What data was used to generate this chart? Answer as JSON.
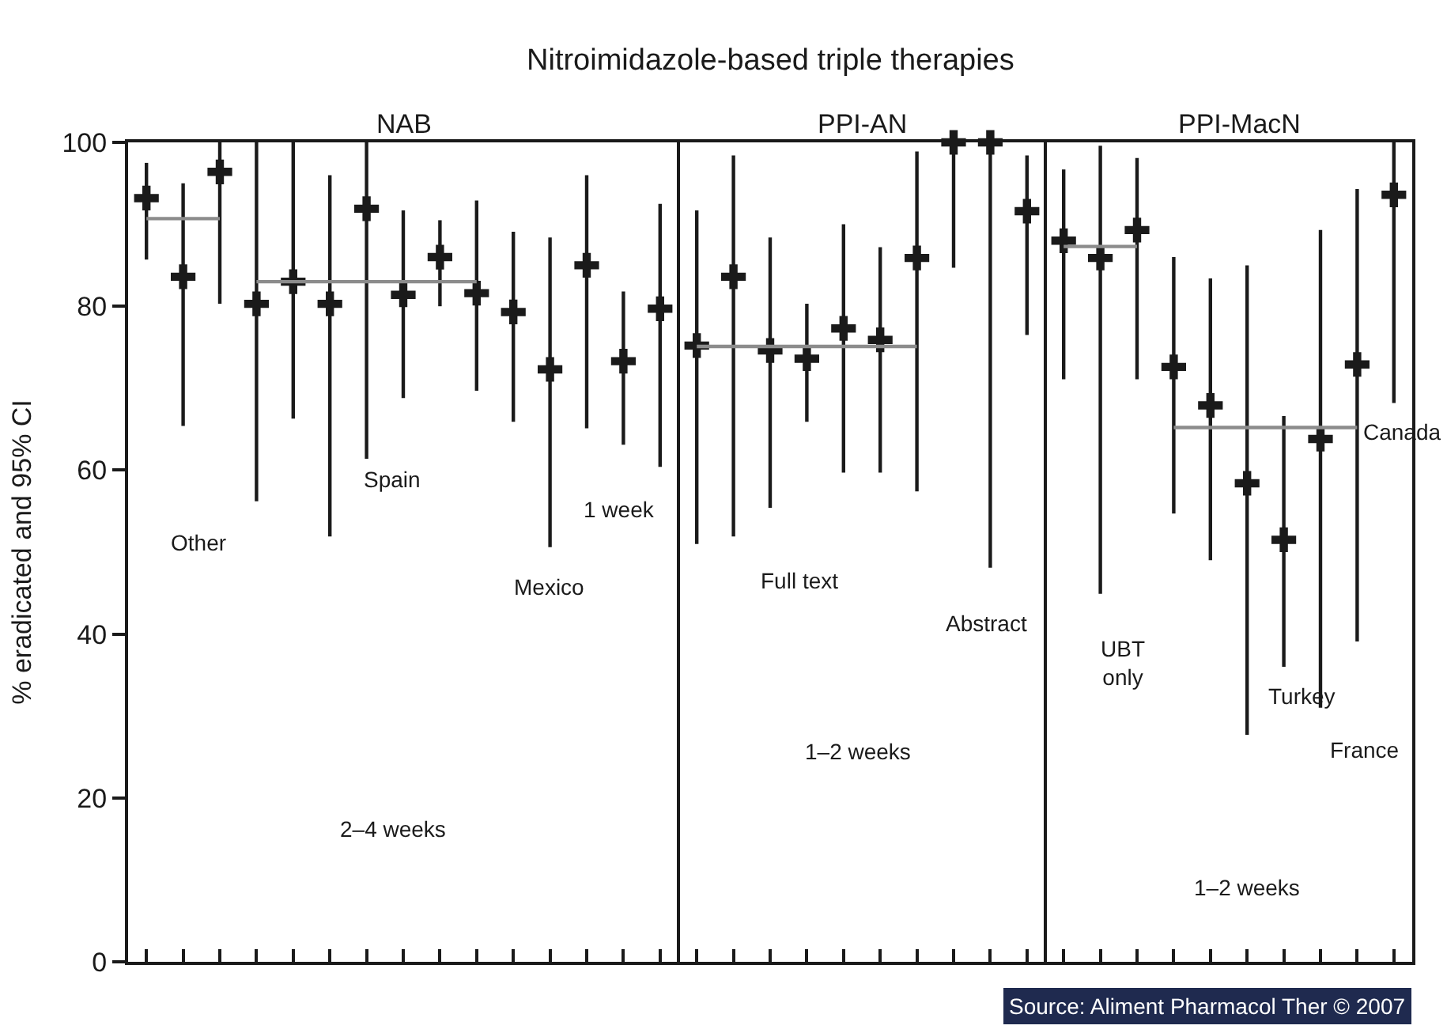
{
  "chart_data": {
    "type": "scatter",
    "ylabel": "% eradicated and 95% CI",
    "categories": [
      null,
      null,
      null,
      null,
      null,
      null,
      null,
      null,
      null,
      null,
      null,
      null,
      null,
      null,
      null,
      null,
      null,
      null,
      null,
      null,
      null,
      null,
      null,
      null,
      null,
      null,
      null,
      null,
      null,
      null,
      null,
      null,
      null,
      null,
      null
    ],
    "series": [
      {
        "color": "#1a1a1a",
        "marker": "cross",
        "values": [
          93.2,
          83.6,
          96.4,
          80.3,
          83,
          80.3,
          91.9,
          81.4,
          86.0,
          81.6,
          79.3,
          72.3,
          85.0,
          73.3,
          79.7,
          75.2,
          83.6,
          74.6,
          73.6,
          77.3,
          75.9,
          85.9,
          100,
          100,
          91.6,
          88.0,
          85.9,
          89.3,
          72.6,
          67.9,
          58.4,
          51.5,
          63.8,
          72.9,
          93.6
        ],
        "errors": [
          [
            85.7,
            97.5
          ],
          [
            65.4,
            95.0
          ],
          [
            80.3,
            100
          ],
          [
            56.2,
            100
          ],
          [
            66.3,
            100
          ],
          [
            51.9,
            96.0
          ],
          [
            61.4,
            100
          ],
          [
            68.8,
            91.7
          ],
          [
            80.0,
            90.5
          ],
          [
            69.7,
            92.9
          ],
          [
            65.9,
            89.1
          ],
          [
            50.6,
            88.4
          ],
          [
            65.1,
            96.0
          ],
          [
            63.1,
            81.8
          ],
          [
            60.4,
            92.5
          ],
          [
            51.0,
            91.7
          ],
          [
            51.9,
            98.4
          ],
          [
            55.4,
            88.4
          ],
          [
            65.9,
            80.3
          ],
          [
            59.7,
            90.0
          ],
          [
            59.7,
            87.2
          ],
          [
            57.4,
            98.9
          ],
          [
            84.7,
            100
          ],
          [
            48.1,
            100
          ],
          [
            76.5,
            98.4
          ],
          [
            71.1,
            96.7
          ],
          [
            44.9,
            99.6
          ],
          [
            71.1,
            98.1
          ],
          [
            54.7,
            86.0
          ],
          [
            49.0,
            83.4
          ],
          [
            27.7,
            85.0
          ],
          [
            36.0,
            66.6
          ],
          [
            31.0,
            89.3
          ],
          [
            39.1,
            94.3
          ],
          [
            68.2,
            100
          ]
        ]
      },
      {
        "type": "line",
        "color": "#8c8c8c",
        "values": [
          90.7,
          90.7,
          90.7,
          null,
          null,
          null,
          null,
          null,
          null,
          null,
          null,
          null,
          null,
          null,
          null,
          null,
          null,
          null,
          null,
          null,
          null,
          null,
          null,
          null,
          null,
          null,
          null,
          null,
          null,
          null,
          null,
          null,
          null,
          null,
          null
        ]
      },
      {
        "type": "line",
        "color": "#8c8c8c",
        "values": [
          null,
          null,
          null,
          83.0,
          83.0,
          83.0,
          83.0,
          83.0,
          83.0,
          83.0,
          null,
          null,
          null,
          null,
          null,
          null,
          null,
          null,
          null,
          null,
          null,
          null,
          null,
          null,
          null,
          null,
          null,
          null,
          null,
          null,
          null,
          null,
          null,
          null,
          null
        ]
      },
      {
        "type": "line",
        "color": "#8c8c8c",
        "values": [
          null,
          null,
          null,
          null,
          null,
          null,
          null,
          null,
          null,
          null,
          null,
          null,
          null,
          null,
          null,
          75.1,
          75.1,
          75.1,
          75.1,
          75.1,
          75.1,
          75.1,
          null,
          null,
          null,
          null,
          null,
          null,
          null,
          null,
          null,
          null,
          null,
          null,
          null
        ]
      },
      {
        "type": "line",
        "color": "#8c8c8c",
        "values": [
          null,
          null,
          null,
          null,
          null,
          null,
          null,
          null,
          null,
          null,
          null,
          null,
          null,
          null,
          null,
          null,
          null,
          null,
          null,
          null,
          null,
          null,
          null,
          null,
          null,
          87.3,
          87.3,
          87.3,
          null,
          null,
          null,
          null,
          null,
          null,
          null
        ]
      },
      {
        "type": "line",
        "color": "#8c8c8c",
        "values": [
          null,
          null,
          null,
          null,
          null,
          null,
          null,
          null,
          null,
          null,
          null,
          null,
          null,
          null,
          null,
          null,
          null,
          null,
          null,
          null,
          null,
          null,
          null,
          null,
          null,
          null,
          null,
          null,
          65.2,
          65.2,
          65.2,
          65.2,
          65.2,
          65.2,
          null
        ]
      }
    ],
    "ylim": [
      0,
      100
    ],
    "yticks": [
      0,
      20,
      40,
      60,
      80,
      100
    ],
    "tick_labels": "y",
    "annotations": [
      "Nitroimidazole-based triple therapies",
      "NAB",
      "PPI-AN",
      "PPI-MacN",
      "Other",
      "Spain",
      "1 week",
      "Mexico",
      "2–4 weeks",
      "Full text",
      "Abstract",
      "1–2 weeks",
      "UBT\nonly",
      "Turkey",
      "France",
      "Canada",
      "1–2 weeks",
      "Source: Aliment Pharmacol Ther © 2007"
    ]
  }
}
